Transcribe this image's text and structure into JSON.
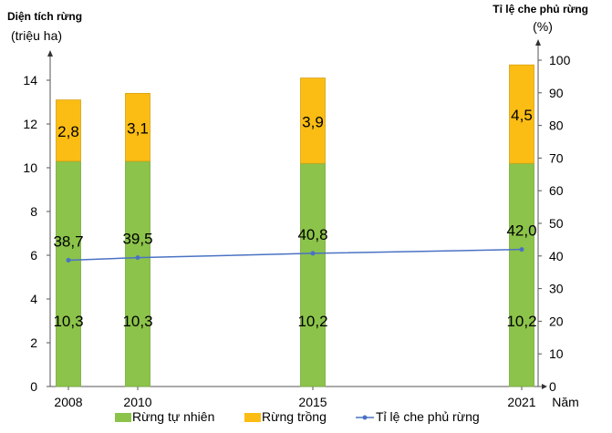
{
  "chart_data": {
    "type": "bar",
    "stacked": true,
    "categories": [
      "2008",
      "2010",
      "2015",
      "2021"
    ],
    "xlabel": "Năm",
    "ylabel_left": [
      "Diện tích rừng",
      "(triệu ha)"
    ],
    "ylabel_right": [
      "Tỉ lệ che phủ rừng",
      "(%)"
    ],
    "ylim_left": [
      0,
      14
    ],
    "yticks_left": [
      0,
      2,
      4,
      6,
      8,
      10,
      12,
      14
    ],
    "ylim_right": [
      0,
      100
    ],
    "yticks_right": [
      0,
      10,
      20,
      30,
      40,
      50,
      60,
      70,
      80,
      90,
      100
    ],
    "legend_placement": "bottom",
    "series": [
      {
        "name": "Rừng tự nhiên",
        "kind": "bar",
        "axis": "left",
        "color": "#8cc34a",
        "values": [
          10.3,
          10.3,
          10.2,
          10.2
        ],
        "labels": [
          "10,3",
          "10,3",
          "10,2",
          "10,2"
        ]
      },
      {
        "name": "Rừng trồng",
        "kind": "bar",
        "axis": "left",
        "color": "#fbbd14",
        "values": [
          2.8,
          3.1,
          3.9,
          4.5
        ],
        "labels": [
          "2,8",
          "3,1",
          "3,9",
          "4,5"
        ]
      },
      {
        "name": "Tỉ lệ che phủ rừng",
        "kind": "line",
        "axis": "right",
        "color": "#4a72c4",
        "values": [
          38.7,
          39.5,
          40.8,
          42.0
        ],
        "labels": [
          "38,7",
          "39,5",
          "40,8",
          "42,0"
        ]
      }
    ]
  }
}
